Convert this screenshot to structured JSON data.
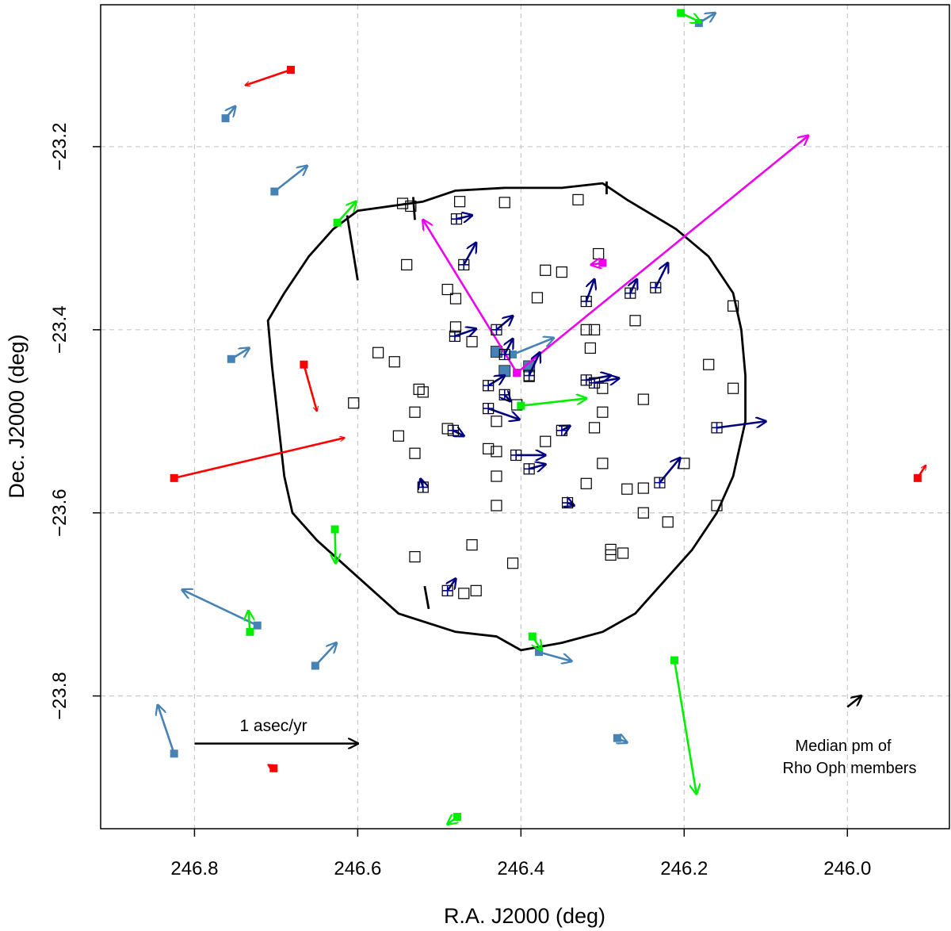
{
  "chart_data": {
    "type": "scatter",
    "xlabel": "R.A. J2000 (deg)",
    "ylabel": "Dec. J2000 (deg)",
    "xlim": [
      246.915,
      245.875
    ],
    "ylim": [
      -23.945,
      -23.045
    ],
    "x_ticks": [
      246.8,
      246.6,
      246.4,
      246.2,
      246.0
    ],
    "x_tick_labels": [
      "246.8",
      "246.6",
      "246.4",
      "246.2",
      "246.0"
    ],
    "y_ticks": [
      -23.2,
      -23.4,
      -23.6,
      -23.8
    ],
    "y_tick_labels": [
      "−23.2",
      "−23.4",
      "−23.6",
      "−23.8"
    ],
    "grid": true,
    "scale_arrow": {
      "label": "1 asec/yr",
      "x": 246.8,
      "y": -23.852,
      "x_end": 246.6,
      "y_end": -23.852
    },
    "median_arrow": {
      "label_lines": [
        "Median pm of",
        "Rho Oph members"
      ],
      "x": 246.0,
      "y": -23.812,
      "x_end": 245.983,
      "y_end": -23.8
    },
    "colors": {
      "red": "#ff0000",
      "steelblue": "#4682b4",
      "green": "#00ee00",
      "magenta": "#ee00ee",
      "navy": "#000080",
      "black": "#000000"
    },
    "series": [
      {
        "color": "red",
        "marker": "filled-square",
        "points": [
          {
            "x": 246.682,
            "y": -23.116,
            "x_end": 246.738,
            "y_end": -23.133
          },
          {
            "x": 246.666,
            "y": -23.438,
            "x_end": 246.65,
            "y_end": -23.489
          },
          {
            "x": 246.825,
            "y": -23.562,
            "x_end": 246.616,
            "y_end": -23.518
          },
          {
            "x": 246.703,
            "y": -23.879,
            "x_end": 246.71,
            "y_end": -23.875
          },
          {
            "x": 245.914,
            "y": -23.562,
            "x_end": 245.904,
            "y_end": -23.548
          }
        ]
      },
      {
        "color": "steelblue",
        "marker": "filled-square",
        "points": [
          {
            "x": 246.762,
            "y": -23.169,
            "x_end": 246.75,
            "y_end": -23.156
          },
          {
            "x": 246.182,
            "y": -23.065,
            "x_end": 246.162,
            "y_end": -23.054
          },
          {
            "x": 246.702,
            "y": -23.249,
            "x_end": 246.662,
            "y_end": -23.221
          },
          {
            "x": 246.755,
            "y": -23.432,
            "x_end": 246.733,
            "y_end": -23.42
          },
          {
            "x": 246.723,
            "y": -23.723,
            "x_end": 246.815,
            "y_end": -23.684
          },
          {
            "x": 246.652,
            "y": -23.767,
            "x_end": 246.626,
            "y_end": -23.742
          },
          {
            "x": 246.825,
            "y": -23.863,
            "x_end": 246.845,
            "y_end": -23.81
          },
          {
            "x": 246.378,
            "y": -23.752,
            "x_end": 246.338,
            "y_end": -23.762
          },
          {
            "x": 246.282,
            "y": -23.846,
            "x_end": 246.27,
            "y_end": -23.851
          },
          {
            "x": 246.41,
            "y": -23.427,
            "x_end": 246.36,
            "y_end": -23.409
          }
        ]
      },
      {
        "color": "green",
        "marker": "filled-square",
        "points": [
          {
            "x": 246.204,
            "y": -23.054,
            "x_end": 246.18,
            "y_end": -23.064
          },
          {
            "x": 246.625,
            "y": -23.283,
            "x_end": 246.602,
            "y_end": -23.26
          },
          {
            "x": 246.4,
            "y": -23.483,
            "x_end": 246.32,
            "y_end": -23.475
          },
          {
            "x": 246.628,
            "y": -23.618,
            "x_end": 246.627,
            "y_end": -23.655
          },
          {
            "x": 246.732,
            "y": -23.73,
            "x_end": 246.734,
            "y_end": -23.707
          },
          {
            "x": 246.386,
            "y": -23.735,
            "x_end": 246.375,
            "y_end": -23.75
          },
          {
            "x": 246.212,
            "y": -23.761,
            "x_end": 246.185,
            "y_end": -23.907
          },
          {
            "x": 246.478,
            "y": -23.932,
            "x_end": 246.49,
            "y_end": -23.94
          }
        ]
      },
      {
        "color": "magenta",
        "marker": "filled-square",
        "points": [
          {
            "x": 246.405,
            "y": -23.447,
            "x_end": 246.048,
            "y_end": -23.188
          },
          {
            "x": 246.405,
            "y": -23.447,
            "x_end": 246.52,
            "y_end": -23.28
          },
          {
            "x": 246.3,
            "y": -23.327,
            "x_end": 246.314,
            "y_end": -23.329
          }
        ]
      },
      {
        "color": "navy",
        "marker": "square-plus",
        "points": [
          {
            "x": 246.479,
            "y": -23.279,
            "x_end": 246.46,
            "y_end": -23.275
          },
          {
            "x": 246.47,
            "y": -23.329,
            "x_end": 246.455,
            "y_end": -23.305
          },
          {
            "x": 246.32,
            "y": -23.369,
            "x_end": 246.31,
            "y_end": -23.345
          },
          {
            "x": 246.266,
            "y": -23.36,
            "x_end": 246.258,
            "y_end": -23.345
          },
          {
            "x": 246.235,
            "y": -23.354,
            "x_end": 246.22,
            "y_end": -23.327
          },
          {
            "x": 246.481,
            "y": -23.407,
            "x_end": 246.455,
            "y_end": -23.399
          },
          {
            "x": 246.43,
            "y": -23.4,
            "x_end": 246.41,
            "y_end": -23.385
          },
          {
            "x": 246.42,
            "y": -23.427,
            "x_end": 246.41,
            "y_end": -23.41
          },
          {
            "x": 246.39,
            "y": -23.45,
            "x_end": 246.377,
            "y_end": -23.425
          },
          {
            "x": 246.32,
            "y": -23.455,
            "x_end": 246.29,
            "y_end": -23.45
          },
          {
            "x": 246.31,
            "y": -23.458,
            "x_end": 246.28,
            "y_end": -23.453
          },
          {
            "x": 246.44,
            "y": -23.461,
            "x_end": 246.42,
            "y_end": -23.45
          },
          {
            "x": 246.42,
            "y": -23.471,
            "x_end": 246.413,
            "y_end": -23.478
          },
          {
            "x": 246.44,
            "y": -23.486,
            "x_end": 246.402,
            "y_end": -23.498
          },
          {
            "x": 246.483,
            "y": -23.51,
            "x_end": 246.47,
            "y_end": -23.516
          },
          {
            "x": 246.35,
            "y": -23.51,
            "x_end": 246.34,
            "y_end": -23.505
          },
          {
            "x": 246.16,
            "y": -23.507,
            "x_end": 246.1,
            "y_end": -23.5
          },
          {
            "x": 246.406,
            "y": -23.537,
            "x_end": 246.37,
            "y_end": -23.537
          },
          {
            "x": 246.39,
            "y": -23.552,
            "x_end": 246.37,
            "y_end": -23.547
          },
          {
            "x": 246.52,
            "y": -23.572,
            "x_end": 246.523,
            "y_end": -23.563
          },
          {
            "x": 246.23,
            "y": -23.567,
            "x_end": 246.205,
            "y_end": -23.54
          },
          {
            "x": 246.343,
            "y": -23.589,
            "x_end": 246.335,
            "y_end": -23.592
          },
          {
            "x": 246.49,
            "y": -23.685,
            "x_end": 246.48,
            "y_end": -23.672
          }
        ]
      }
    ],
    "open_squares": [
      [
        246.545,
        -23.262
      ],
      [
        246.535,
        -23.265
      ],
      [
        246.475,
        -23.26
      ],
      [
        246.42,
        -23.261
      ],
      [
        246.33,
        -23.258
      ],
      [
        246.54,
        -23.329
      ],
      [
        246.305,
        -23.317
      ],
      [
        246.37,
        -23.335
      ],
      [
        246.35,
        -23.337
      ],
      [
        246.49,
        -23.356
      ],
      [
        246.48,
        -23.366
      ],
      [
        246.38,
        -23.365
      ],
      [
        246.26,
        -23.39
      ],
      [
        246.14,
        -23.374
      ],
      [
        246.48,
        -23.397
      ],
      [
        246.32,
        -23.4
      ],
      [
        246.31,
        -23.4
      ],
      [
        246.46,
        -23.413
      ],
      [
        246.315,
        -23.42
      ],
      [
        246.575,
        -23.425
      ],
      [
        246.555,
        -23.435
      ],
      [
        246.17,
        -23.438
      ],
      [
        246.39,
        -23.451
      ],
      [
        246.3,
        -23.464
      ],
      [
        246.14,
        -23.464
      ],
      [
        246.525,
        -23.465
      ],
      [
        246.52,
        -23.468
      ],
      [
        246.25,
        -23.476
      ],
      [
        246.605,
        -23.48
      ],
      [
        246.405,
        -23.482
      ],
      [
        246.53,
        -23.49
      ],
      [
        246.3,
        -23.49
      ],
      [
        246.43,
        -23.5
      ],
      [
        246.49,
        -23.508
      ],
      [
        246.31,
        -23.507
      ],
      [
        246.55,
        -23.516
      ],
      [
        246.37,
        -23.522
      ],
      [
        246.44,
        -23.53
      ],
      [
        246.43,
        -23.533
      ],
      [
        246.53,
        -23.535
      ],
      [
        246.3,
        -23.546
      ],
      [
        246.2,
        -23.546
      ],
      [
        246.43,
        -23.56
      ],
      [
        246.32,
        -23.568
      ],
      [
        246.27,
        -23.574
      ],
      [
        246.25,
        -23.573
      ],
      [
        246.43,
        -23.592
      ],
      [
        246.16,
        -23.592
      ],
      [
        246.25,
        -23.6
      ],
      [
        246.22,
        -23.61
      ],
      [
        246.46,
        -23.635
      ],
      [
        246.29,
        -23.64
      ],
      [
        246.275,
        -23.644
      ],
      [
        246.29,
        -23.646
      ],
      [
        246.53,
        -23.648
      ],
      [
        246.41,
        -23.655
      ],
      [
        246.455,
        -23.685
      ],
      [
        246.47,
        -23.688
      ]
    ],
    "filled_steelblue_squares": [
      [
        246.43,
        -23.424
      ],
      [
        246.42,
        -23.445
      ],
      [
        246.39,
        -23.44
      ]
    ],
    "outline_polygon": [
      [
        246.52,
        -23.26
      ],
      [
        246.6,
        -23.27
      ],
      [
        246.63,
        -23.29
      ],
      [
        246.66,
        -23.32
      ],
      [
        246.69,
        -23.36
      ],
      [
        246.71,
        -23.39
      ],
      [
        246.705,
        -23.44
      ],
      [
        246.695,
        -23.52
      ],
      [
        246.69,
        -23.56
      ],
      [
        246.68,
        -23.6
      ],
      [
        246.65,
        -23.63
      ],
      [
        246.6,
        -23.67
      ],
      [
        246.55,
        -23.71
      ],
      [
        246.48,
        -23.73
      ],
      [
        246.43,
        -23.735
      ],
      [
        246.4,
        -23.75
      ],
      [
        246.35,
        -23.742
      ],
      [
        246.3,
        -23.73
      ],
      [
        246.26,
        -23.71
      ],
      [
        246.22,
        -23.67
      ],
      [
        246.19,
        -23.64
      ],
      [
        246.16,
        -23.6
      ],
      [
        246.14,
        -23.56
      ],
      [
        246.125,
        -23.5
      ],
      [
        246.125,
        -23.45
      ],
      [
        246.13,
        -23.4
      ],
      [
        246.14,
        -23.36
      ],
      [
        246.17,
        -23.32
      ],
      [
        246.21,
        -23.29
      ],
      [
        246.27,
        -23.258
      ],
      [
        246.3,
        -23.24
      ],
      [
        246.35,
        -23.245
      ],
      [
        246.42,
        -23.245
      ],
      [
        246.48,
        -23.248
      ]
    ],
    "outline_segments": [
      [
        [
          246.613,
          -23.275
        ],
        [
          246.6,
          -23.346
        ]
      ],
      [
        [
          246.532,
          -23.255
        ],
        [
          246.53,
          -23.28
        ]
      ],
      [
        [
          246.513,
          -23.705
        ],
        [
          246.518,
          -23.68
        ]
      ],
      [
        [
          246.295,
          -23.238
        ],
        [
          246.295,
          -23.252
        ]
      ]
    ]
  }
}
